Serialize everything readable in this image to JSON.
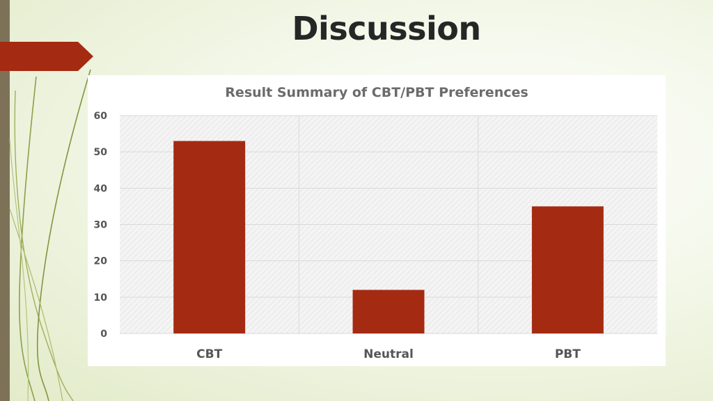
{
  "slide": {
    "title": "Discussion",
    "accent_color": "#a52a12",
    "sidebar_color": "#7d7257"
  },
  "chart_data": {
    "type": "bar",
    "title": "Result Summary of CBT/PBT Preferences",
    "categories": [
      "CBT",
      "Neutral",
      "PBT"
    ],
    "values": [
      53,
      12,
      35
    ],
    "ylim": [
      0,
      60
    ],
    "yticks": [
      0,
      10,
      20,
      30,
      40,
      50,
      60
    ],
    "grid": true,
    "legend": "none",
    "bar_color": "#a52a12"
  }
}
